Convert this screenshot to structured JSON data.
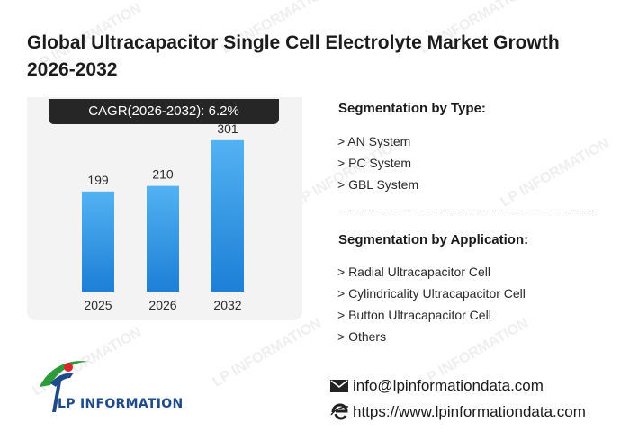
{
  "title": "Global Ultracapacitor Single Cell Electrolyte Market Growth 2026-2032",
  "cagr_label": "CAGR(2026-2032):  6.2%",
  "chart_data": {
    "type": "bar",
    "categories": [
      "2025",
      "2026",
      "2032"
    ],
    "values": [
      199,
      210,
      301
    ],
    "title": "",
    "xlabel": "",
    "ylabel": "",
    "ylim": [
      0,
      340
    ],
    "grid": false,
    "colors": {
      "bar_top": "#52b2f2",
      "bar_bottom": "#1d7fd6"
    }
  },
  "segmentation": {
    "type_heading": "Segmentation by Type:",
    "types": [
      "> AN System",
      "> PC System",
      "> GBL System"
    ],
    "application_heading": "Segmentation by Application:",
    "applications": [
      "> Radial Ultracapacitor Cell",
      "> Cylindricality Ultracapacitor Cell",
      "> Button Ultracapacitor Cell",
      "> Others"
    ]
  },
  "logo": {
    "text": "LP INFORMATION",
    "colors": {
      "blue": "#1f4a8a",
      "green": "#2e9b3a",
      "red": "#d9262b"
    }
  },
  "contact": {
    "email": "info@lpinformationdata.com",
    "email_icon": "envelope-icon",
    "website": "https://www.lpinformationdata.com",
    "website_icon": "browser-e-icon"
  },
  "watermark_text": "LP INFORMATION"
}
